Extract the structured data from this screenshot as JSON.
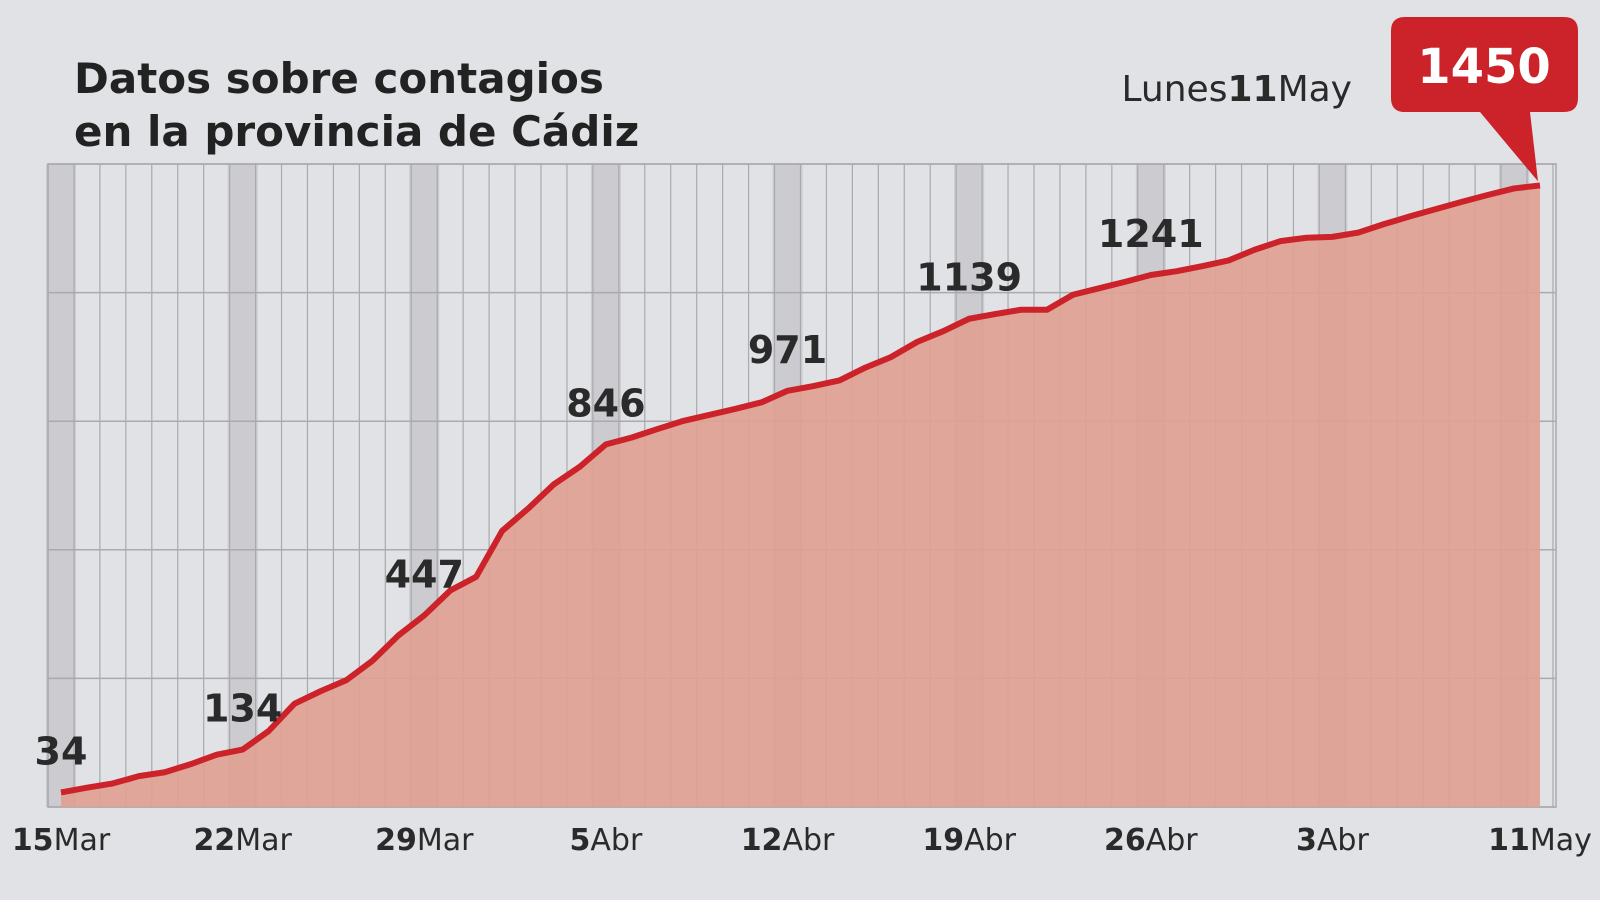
{
  "chart_data": {
    "type": "area",
    "title": [
      "Datos sobre contagios",
      "en la provincia de Cádiz"
    ],
    "annotation": "Lunes11May",
    "categories": [
      "15Mar",
      null,
      null,
      null,
      null,
      null,
      null,
      "22Mar",
      null,
      null,
      null,
      null,
      null,
      null,
      "29Mar",
      null,
      null,
      null,
      null,
      null,
      null,
      "5Abr",
      null,
      null,
      null,
      null,
      null,
      null,
      "12Abr",
      null,
      null,
      null,
      null,
      null,
      null,
      "19Abr",
      null,
      null,
      null,
      null,
      null,
      null,
      "26Abr",
      null,
      null,
      null,
      null,
      null,
      null,
      "3Abr",
      null,
      null,
      null,
      null,
      null,
      null,
      null,
      "11May"
    ],
    "values": [
      34,
      45,
      55,
      72,
      81,
      100,
      122,
      134,
      177,
      241,
      270,
      296,
      341,
      400,
      447,
      505,
      537,
      644,
      696,
      753,
      794,
      846,
      862,
      882,
      901,
      915,
      929,
      944,
      971,
      982,
      995,
      1025,
      1050,
      1085,
      1110,
      1139,
      1150,
      1160,
      1160,
      1195,
      1210,
      1225,
      1241,
      1250,
      1262,
      1275,
      1300,
      1320,
      1328,
      1330,
      1340,
      1360,
      1378,
      1395,
      1412,
      1428,
      1443,
      1450
    ],
    "labeled_points": [
      0,
      7,
      14,
      21,
      28,
      35,
      42,
      57
    ],
    "color": "#cc2229",
    "fill_color": "#e0a192",
    "ylim": [
      0,
      1500
    ],
    "yticks": [
      0,
      300,
      600,
      900,
      1200,
      1500
    ],
    "grid": true
  }
}
